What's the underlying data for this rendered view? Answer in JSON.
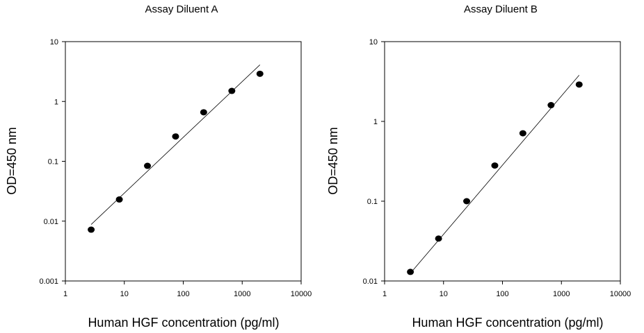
{
  "chart_data": [
    {
      "type": "scatter",
      "title": "Assay Diluent A",
      "xlabel": "Human HGF concentration (pg/ml)",
      "ylabel": "OD=450 nm",
      "x_scale": "log",
      "y_scale": "log",
      "xlim": [
        1,
        10000
      ],
      "ylim": [
        0.001,
        10
      ],
      "x_ticks": [
        "1",
        "10",
        "100",
        "1000",
        "10000"
      ],
      "y_ticks": [
        "10",
        "1",
        "0.1",
        "0.01",
        "0.001"
      ],
      "grid": false,
      "series": [
        {
          "x": [
            2.74,
            8.23,
            24.7,
            74.1,
            222,
            667,
            2000
          ],
          "y": [
            0.0072,
            0.023,
            0.084,
            0.26,
            0.66,
            1.5,
            2.9
          ]
        }
      ],
      "fit_line": {
        "x": [
          2.74,
          2000
        ],
        "y": [
          0.0088,
          4.1
        ]
      }
    },
    {
      "type": "scatter",
      "title": "Assay Diluent B",
      "xlabel": "Human HGF concentration (pg/ml)",
      "ylabel": "OD=450 nm",
      "x_scale": "log",
      "y_scale": "log",
      "xlim": [
        1,
        10000
      ],
      "ylim": [
        0.01,
        10
      ],
      "x_ticks": [
        "1",
        "10",
        "100",
        "1000",
        "10000"
      ],
      "y_ticks": [
        "10",
        "1",
        "0.1",
        "0.01"
      ],
      "grid": false,
      "series": [
        {
          "x": [
            2.74,
            8.23,
            24.7,
            74.1,
            222,
            667,
            2000
          ],
          "y": [
            0.013,
            0.034,
            0.1,
            0.28,
            0.71,
            1.6,
            2.9
          ]
        }
      ],
      "fit_line": {
        "x": [
          2.74,
          2000
        ],
        "y": [
          0.0125,
          3.8
        ]
      }
    }
  ]
}
